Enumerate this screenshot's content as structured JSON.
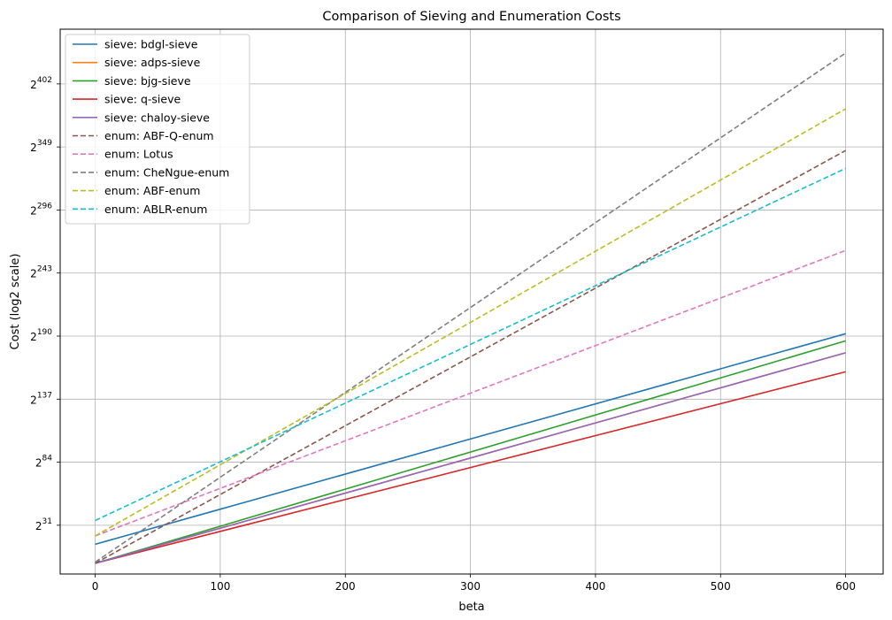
{
  "chart_data": {
    "type": "line",
    "title": "Comparison of Sieving and Enumeration Costs",
    "xlabel": "beta",
    "ylabel": "Cost (log2 scale)",
    "xlim": [
      -28,
      630
    ],
    "ylim": [
      -10,
      448
    ],
    "yscale": "log2",
    "x_ticks": [
      0,
      100,
      200,
      300,
      400,
      500,
      600
    ],
    "y_ticks": [
      31,
      84,
      137,
      190,
      243,
      296,
      349,
      402
    ],
    "y_tick_base": "2",
    "grid": true,
    "legend_position": "top-left",
    "series": [
      {
        "name": "sieve: bdgl-sieve",
        "color": "#1f77b4",
        "dash": "solid",
        "x": [
          0,
          600
        ],
        "y": [
          15,
          192
        ]
      },
      {
        "name": "sieve: adps-sieve",
        "color": "#ff7f0e",
        "dash": "solid",
        "x": [
          0,
          600
        ],
        "y": [
          -1,
          176
        ]
      },
      {
        "name": "sieve: bjg-sieve",
        "color": "#2ca02c",
        "dash": "solid",
        "x": [
          0,
          600
        ],
        "y": [
          -1,
          186
        ]
      },
      {
        "name": "sieve: q-sieve",
        "color": "#d62728",
        "dash": "solid",
        "x": [
          0,
          600
        ],
        "y": [
          -1,
          160
        ]
      },
      {
        "name": "sieve: chaloy-sieve",
        "color": "#9467bd",
        "dash": "solid",
        "x": [
          0,
          600
        ],
        "y": [
          -1,
          176
        ]
      },
      {
        "name": "enum: ABF-Q-enum",
        "color": "#8c564b",
        "dash": "dashed",
        "x": [
          0,
          600
        ],
        "y": [
          -1,
          346
        ]
      },
      {
        "name": "enum: Lotus",
        "color": "#e377c2",
        "dash": "dashed",
        "x": [
          0,
          600
        ],
        "y": [
          22,
          262
        ]
      },
      {
        "name": "enum: CheNgue-enum",
        "color": "#7f7f7f",
        "dash": "dashed",
        "x": [
          0,
          600
        ],
        "y": [
          0,
          428
        ]
      },
      {
        "name": "enum: ABF-enum",
        "color": "#bcbd22",
        "dash": "dashed",
        "x": [
          0,
          600
        ],
        "y": [
          22,
          381
        ]
      },
      {
        "name": "enum: ABLR-enum",
        "color": "#17becf",
        "dash": "dashed",
        "x": [
          0,
          600
        ],
        "y": [
          35,
          331
        ]
      }
    ]
  }
}
